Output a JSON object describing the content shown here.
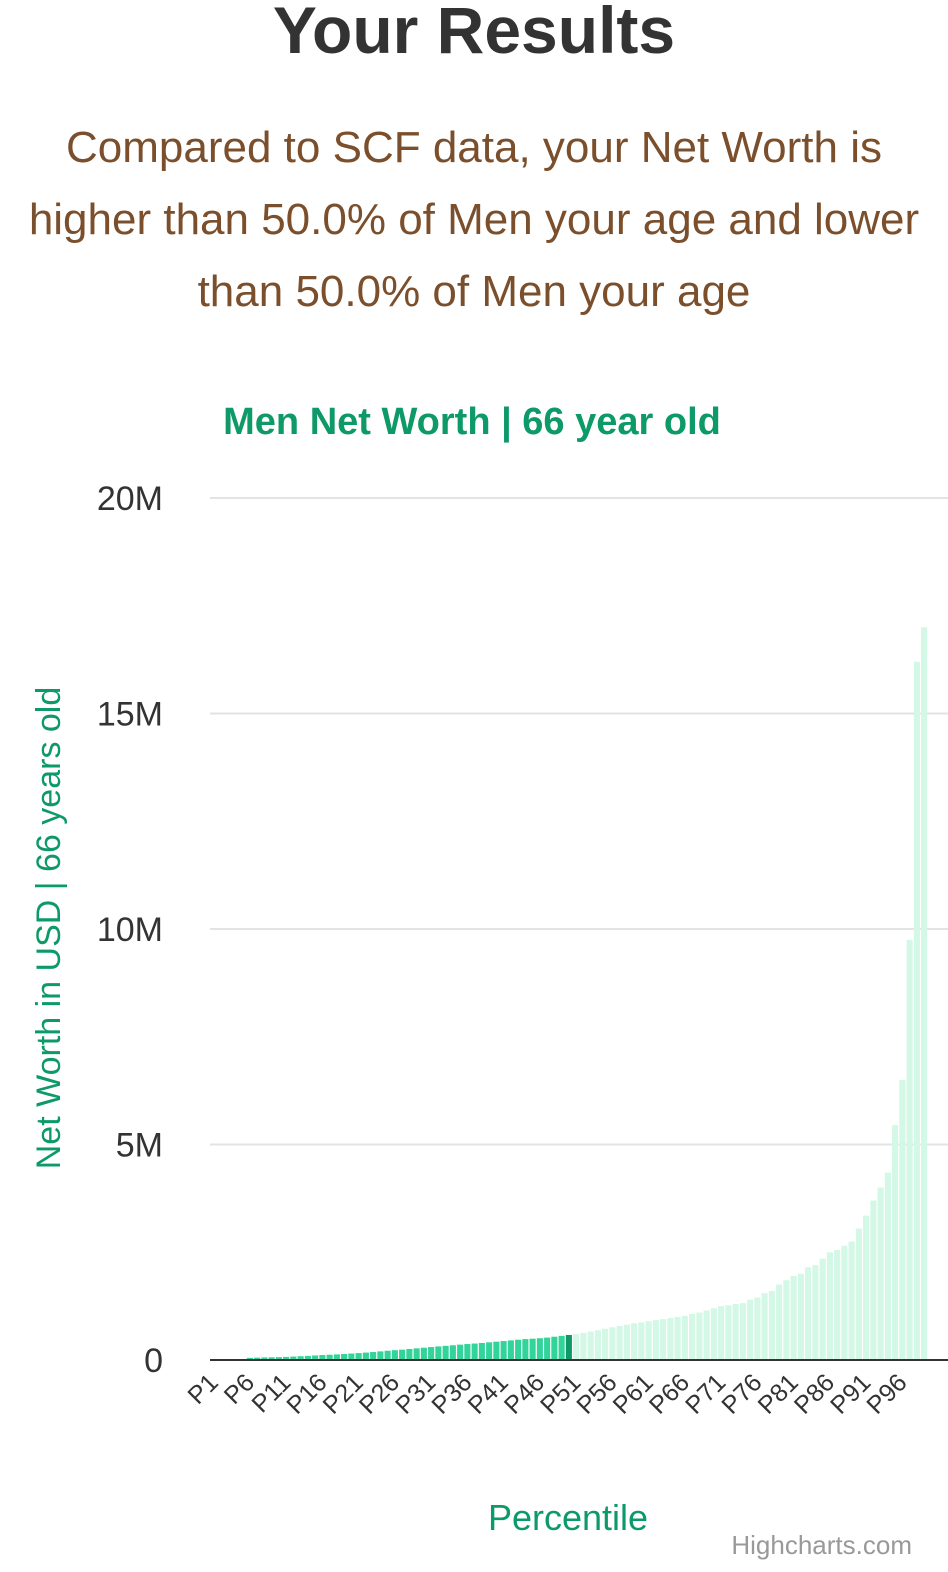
{
  "header": {
    "title": "Your Results",
    "text": "Compared to SCF data, your Net Worth is higher than 50.0% of Men your age and lower than 50.0% of Men your age"
  },
  "chart_data": {
    "type": "bar",
    "title": "Men Net Worth | 66 year old",
    "x_label": "Percentile",
    "y_label": "Net Worth in USD | 66 years old",
    "credits": "Highcharts.com",
    "categories": [
      "P1",
      null,
      null,
      null,
      null,
      "P6",
      null,
      null,
      null,
      null,
      "P11",
      null,
      null,
      null,
      null,
      "P16",
      null,
      null,
      null,
      null,
      "P21",
      null,
      null,
      null,
      null,
      "P26",
      null,
      null,
      null,
      null,
      "P31",
      null,
      null,
      null,
      null,
      "P36",
      null,
      null,
      null,
      null,
      "P41",
      null,
      null,
      null,
      null,
      "P46",
      null,
      null,
      null,
      null,
      "P51",
      null,
      null,
      null,
      null,
      "P56",
      null,
      null,
      null,
      null,
      "P61",
      null,
      null,
      null,
      null,
      "P66",
      null,
      null,
      null,
      null,
      "P71",
      null,
      null,
      null,
      null,
      "P76",
      null,
      null,
      null,
      null,
      "P81",
      null,
      null,
      null,
      null,
      "P86",
      null,
      null,
      null,
      null,
      "P91",
      null,
      null,
      null,
      null,
      "P96",
      null,
      null,
      null
    ],
    "values": [
      0,
      0,
      0,
      0,
      0,
      50000,
      55000,
      60000,
      63000,
      67000,
      72000,
      80000,
      88000,
      95000,
      105000,
      115000,
      122000,
      130000,
      140000,
      150000,
      160000,
      172000,
      185000,
      200000,
      215000,
      228000,
      240000,
      255000,
      270000,
      285000,
      300000,
      315000,
      328000,
      342000,
      356000,
      370000,
      382000,
      395000,
      410000,
      425000,
      440000,
      455000,
      470000,
      485000,
      495000,
      505000,
      520000,
      540000,
      560000,
      580000,
      600000,
      630000,
      660000,
      690000,
      725000,
      760000,
      790000,
      820000,
      850000,
      875000,
      900000,
      925000,
      950000,
      975000,
      1000000,
      1020000,
      1070000,
      1100000,
      1150000,
      1200000,
      1250000,
      1270000,
      1300000,
      1320000,
      1400000,
      1450000,
      1550000,
      1600000,
      1750000,
      1850000,
      1950000,
      2000000,
      2150000,
      2200000,
      2350000,
      2500000,
      2550000,
      2650000,
      2750000,
      3050000,
      3350000,
      3700000,
      4000000,
      4350000,
      5450000,
      6500000,
      9750000,
      16200000,
      17000000
    ],
    "colors": [
      "#33d49a",
      "#33d49a",
      "#33d49a",
      "#33d49a",
      "#33d49a",
      "#33d49a",
      "#33d49a",
      "#33d49a",
      "#33d49a",
      "#33d49a",
      "#33d49a",
      "#33d49a",
      "#33d49a",
      "#33d49a",
      "#33d49a",
      "#33d49a",
      "#33d49a",
      "#33d49a",
      "#33d49a",
      "#33d49a",
      "#33d49a",
      "#33d49a",
      "#33d49a",
      "#33d49a",
      "#33d49a",
      "#33d49a",
      "#33d49a",
      "#33d49a",
      "#33d49a",
      "#33d49a",
      "#33d49a",
      "#33d49a",
      "#33d49a",
      "#33d49a",
      "#33d49a",
      "#33d49a",
      "#33d49a",
      "#33d49a",
      "#33d49a",
      "#33d49a",
      "#33d49a",
      "#33d49a",
      "#33d49a",
      "#33d49a",
      "#33d49a",
      "#33d49a",
      "#33d49a",
      "#33d49a",
      "#33d49a",
      "#0e9a68",
      "#d3f8e6",
      "#d3f8e6",
      "#d3f8e6",
      "#d3f8e6",
      "#d3f8e6",
      "#d3f8e6",
      "#d3f8e6",
      "#d3f8e6",
      "#d3f8e6",
      "#d3f8e6",
      "#d3f8e6",
      "#d3f8e6",
      "#d3f8e6",
      "#d3f8e6",
      "#d3f8e6",
      "#d3f8e6",
      "#d3f8e6",
      "#d3f8e6",
      "#d3f8e6",
      "#d3f8e6",
      "#d3f8e6",
      "#d3f8e6",
      "#d3f8e6",
      "#d3f8e6",
      "#d3f8e6",
      "#d3f8e6",
      "#d3f8e6",
      "#d3f8e6",
      "#d3f8e6",
      "#d3f8e6",
      "#d3f8e6",
      "#d3f8e6",
      "#d3f8e6",
      "#d3f8e6",
      "#d3f8e6",
      "#d3f8e6",
      "#d3f8e6",
      "#d3f8e6",
      "#d3f8e6",
      "#d3f8e6",
      "#d3f8e6",
      "#d3f8e6",
      "#d3f8e6",
      "#d3f8e6",
      "#d3f8e6",
      "#d3f8e6",
      "#d3f8e6",
      "#d3f8e6",
      "#d3f8e6"
    ],
    "ylim": [
      0,
      20000000
    ],
    "yticks": [
      0,
      {
        "value": 5000000,
        "label": "5M"
      },
      {
        "value": 10000000,
        "label": "10M"
      },
      {
        "value": 15000000,
        "label": "15M"
      },
      {
        "value": 20000000,
        "label": "20M"
      }
    ],
    "grid": true
  }
}
